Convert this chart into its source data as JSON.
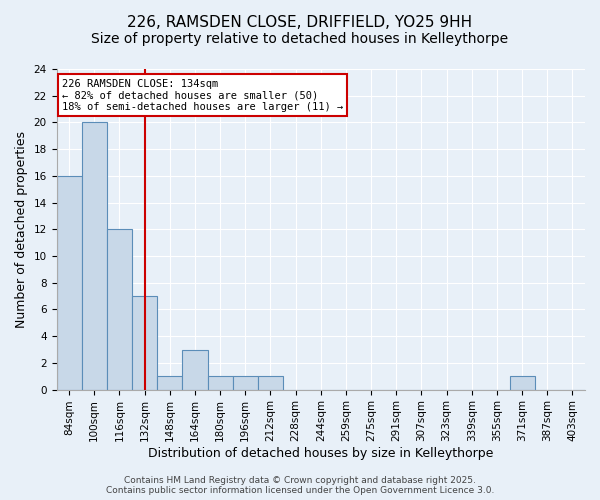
{
  "title_line1": "226, RAMSDEN CLOSE, DRIFFIELD, YO25 9HH",
  "title_line2": "Size of property relative to detached houses in Kelleythorpe",
  "xlabel": "Distribution of detached houses by size in Kelleythorpe",
  "ylabel": "Number of detached properties",
  "bin_labels": [
    "84sqm",
    "100sqm",
    "116sqm",
    "132sqm",
    "148sqm",
    "164sqm",
    "180sqm",
    "196sqm",
    "212sqm",
    "228sqm",
    "244sqm",
    "259sqm",
    "275sqm",
    "291sqm",
    "307sqm",
    "323sqm",
    "339sqm",
    "355sqm",
    "371sqm",
    "387sqm",
    "403sqm"
  ],
  "values": [
    16,
    20,
    12,
    7,
    1,
    3,
    1,
    1,
    1,
    0,
    0,
    0,
    0,
    0,
    0,
    0,
    0,
    0,
    1,
    0,
    0
  ],
  "bar_color": "#c8d8e8",
  "bar_edge_color": "#5b8db8",
  "vline_color": "#cc0000",
  "vline_x": 3.0,
  "annotation_text": "226 RAMSDEN CLOSE: 134sqm\n← 82% of detached houses are smaller (50)\n18% of semi-detached houses are larger (11) →",
  "annotation_box_color": "#ffffff",
  "annotation_box_edge": "#cc0000",
  "ylim": [
    0,
    24
  ],
  "yticks": [
    0,
    2,
    4,
    6,
    8,
    10,
    12,
    14,
    16,
    18,
    20,
    22,
    24
  ],
  "footer_text": "Contains HM Land Registry data © Crown copyright and database right 2025.\nContains public sector information licensed under the Open Government Licence 3.0.",
  "background_color": "#e8f0f8",
  "grid_color": "#ffffff",
  "title_fontsize": 11,
  "subtitle_fontsize": 10,
  "axis_fontsize": 9,
  "tick_fontsize": 7.5,
  "footer_fontsize": 6.5
}
